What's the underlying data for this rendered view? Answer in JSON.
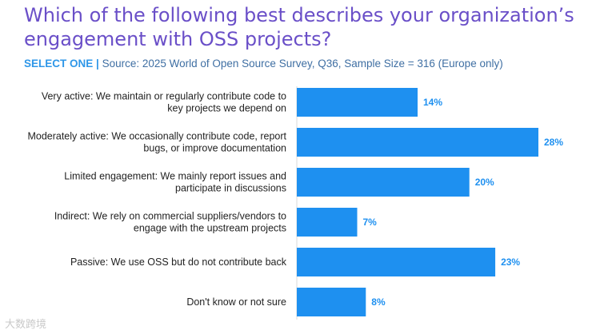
{
  "chart_data": {
    "type": "bar",
    "orientation": "horizontal",
    "title": "Which of the following best describes your organization’s engagement with OSS projects?",
    "subtitle_prefix": "SELECT ONE |",
    "subtitle": "Source: 2025 World of Open Source Survey, Q36, Sample Size = 316 (Europe only)",
    "categories": [
      [
        "Very active: We maintain or regularly contribute code to",
        "key projects we depend on"
      ],
      [
        "Moderately active: We occasionally contribute code, report",
        "bugs, or improve documentation"
      ],
      [
        "Limited engagement: We mainly report issues and",
        "participate in discussions"
      ],
      [
        "Indirect: We rely on commercial suppliers/vendors to",
        "engage with the upstream projects"
      ],
      [
        "Passive: We use OSS but do not contribute back"
      ],
      [
        "Don't know or not sure"
      ]
    ],
    "values": [
      14,
      28,
      20,
      7,
      23,
      8
    ],
    "value_labels": [
      "14%",
      "28%",
      "20%",
      "7%",
      "23%",
      "8%"
    ],
    "xlim": [
      0,
      28
    ],
    "grid": false,
    "legend": "none",
    "bar_color": "#1e90f0",
    "value_label_color": "#1e90f0",
    "title_color": "#6a4fc8"
  },
  "watermark": "大数跨境"
}
